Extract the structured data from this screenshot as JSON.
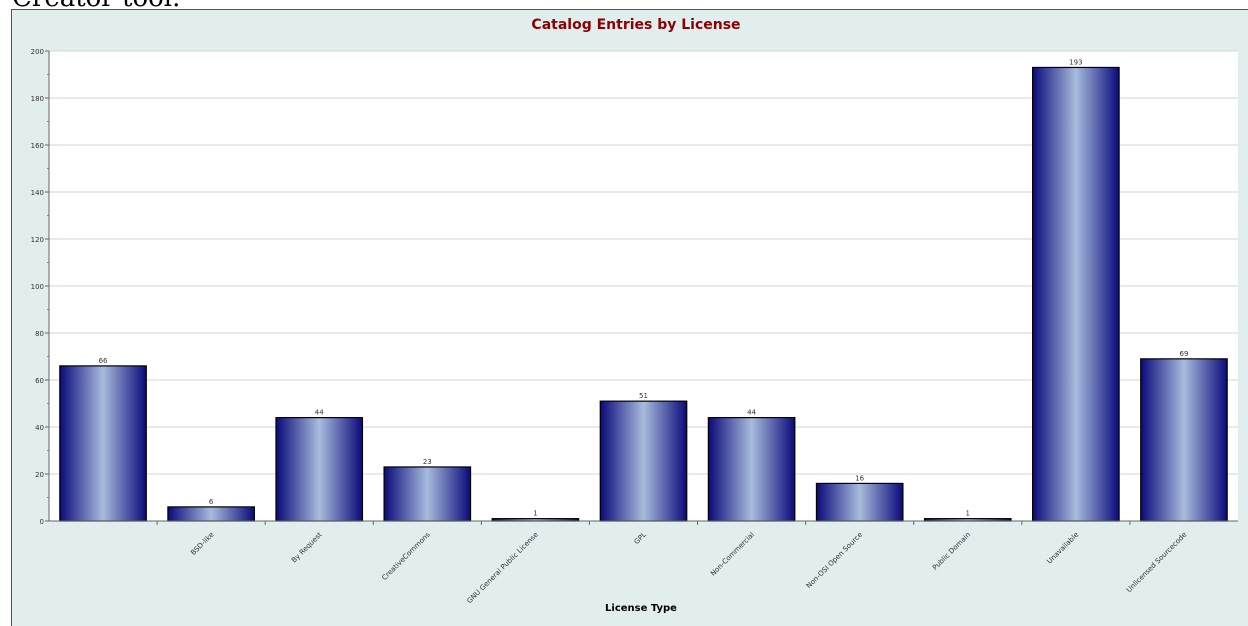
{
  "page": {
    "caption_fragment": "Creator tool."
  },
  "chart_data": {
    "type": "bar",
    "title": "Catalog Entries by License",
    "xlabel": "License Type",
    "ylabel": "",
    "categories": [
      "",
      "BSD-like",
      "By Request",
      "CreativeCommons",
      "GNU General Public License",
      "GPL",
      "Non-Commercial",
      "Non-OSI Open Source",
      "Public Domain",
      "Unavailable",
      "Unlicensed Sourcecode"
    ],
    "values": [
      66,
      6,
      44,
      23,
      1,
      51,
      44,
      16,
      1,
      193,
      69
    ],
    "ylim": [
      0,
      200
    ],
    "yticks": [
      0,
      20,
      40,
      60,
      80,
      100,
      120,
      140,
      160,
      180,
      200
    ],
    "grid": true,
    "colors": {
      "bar_dark": "#0a0a7a",
      "bar_light": "#a8bcdc",
      "title": "#8b0000",
      "frame_bg": "#e2eeee",
      "plot_bg": "#ffffff"
    }
  }
}
